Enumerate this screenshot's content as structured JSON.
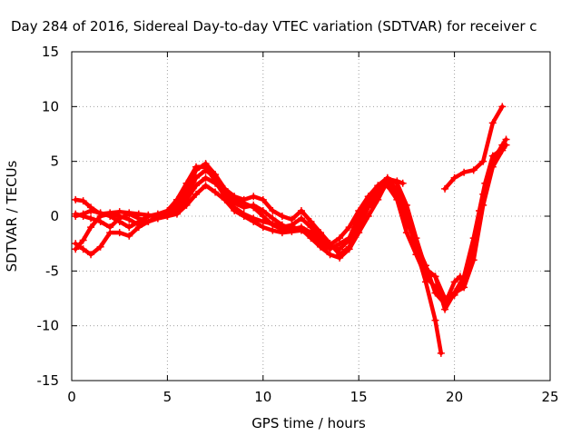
{
  "chart_data": {
    "type": "scatter",
    "title": "Day 284 of 2016, Sidereal Day-to-day VTEC variation (SDTVAR) for receiver c",
    "xlabel": "GPS time / hours",
    "ylabel": "SDTVAR / TECUs",
    "xlim": [
      0,
      25
    ],
    "ylim": [
      -15,
      15
    ],
    "xticks": [
      "0",
      "5",
      "10",
      "15",
      "20",
      "25"
    ],
    "yticks": [
      "-15",
      "-10",
      "-5",
      "0",
      "5",
      "10",
      "15"
    ],
    "grid": true,
    "legend": "none",
    "marker": "plus",
    "color": "#ff0000",
    "series": [
      {
        "points": [
          [
            0.2,
            1.5
          ],
          [
            0.6,
            1.4
          ],
          [
            1.0,
            0.8
          ],
          [
            1.5,
            0.2
          ],
          [
            2.0,
            0.3
          ],
          [
            2.5,
            0.4
          ],
          [
            3.0,
            0.3
          ],
          [
            3.5,
            0.2
          ],
          [
            4.0,
            0.1
          ],
          [
            4.5,
            0.0
          ],
          [
            5.0,
            0.2
          ],
          [
            5.5,
            0.8
          ],
          [
            6.0,
            2.5
          ],
          [
            6.5,
            4.2
          ],
          [
            7.0,
            4.8
          ],
          [
            7.5,
            3.8
          ],
          [
            8.0,
            2.5
          ],
          [
            8.5,
            1.8
          ],
          [
            9.0,
            1.5
          ],
          [
            9.5,
            1.8
          ],
          [
            10.0,
            1.5
          ],
          [
            10.5,
            0.5
          ],
          [
            11.0,
            0.0
          ],
          [
            11.5,
            -0.3
          ],
          [
            12.0,
            0.5
          ],
          [
            12.5,
            -0.5
          ],
          [
            13.0,
            -1.5
          ],
          [
            13.5,
            -2.5
          ],
          [
            14.0,
            -3.5
          ],
          [
            14.5,
            -2.8
          ],
          [
            15.0,
            -1.0
          ],
          [
            15.5,
            0.8
          ],
          [
            16.0,
            1.8
          ],
          [
            16.5,
            3.0
          ],
          [
            17.0,
            2.0
          ],
          [
            17.5,
            -0.5
          ],
          [
            18.0,
            -2.5
          ],
          [
            18.5,
            -4.5
          ],
          [
            19.0,
            -7.0
          ],
          [
            19.5,
            -8.0
          ],
          [
            20.0,
            -6.0
          ],
          [
            20.3,
            -5.5
          ]
        ]
      },
      {
        "points": [
          [
            0.2,
            0.2
          ],
          [
            0.6,
            0.0
          ],
          [
            1.0,
            -0.2
          ],
          [
            1.5,
            -0.5
          ],
          [
            2.0,
            -1.0
          ],
          [
            2.5,
            -0.2
          ],
          [
            3.0,
            0.2
          ],
          [
            3.5,
            -0.2
          ],
          [
            4.0,
            -0.5
          ],
          [
            4.5,
            0.0
          ],
          [
            5.0,
            0.3
          ],
          [
            5.5,
            1.0
          ],
          [
            6.0,
            2.0
          ],
          [
            6.5,
            3.5
          ],
          [
            7.0,
            4.2
          ],
          [
            7.5,
            3.5
          ],
          [
            8.0,
            2.0
          ],
          [
            8.5,
            1.2
          ],
          [
            9.0,
            0.8
          ],
          [
            9.5,
            1.0
          ],
          [
            10.0,
            0.5
          ],
          [
            10.5,
            -0.2
          ],
          [
            11.0,
            -0.8
          ],
          [
            11.5,
            -1.2
          ],
          [
            12.0,
            -1.0
          ],
          [
            12.5,
            -1.5
          ],
          [
            13.0,
            -2.2
          ],
          [
            13.5,
            -2.8
          ],
          [
            14.0,
            -3.0
          ],
          [
            14.5,
            -2.2
          ],
          [
            15.0,
            -0.5
          ],
          [
            15.5,
            1.2
          ],
          [
            16.0,
            2.2
          ],
          [
            16.5,
            3.4
          ],
          [
            17.0,
            3.2
          ],
          [
            17.3,
            3.0
          ]
        ]
      },
      {
        "points": [
          [
            0.2,
            -3.0
          ],
          [
            0.6,
            -2.2
          ],
          [
            1.0,
            -1.0
          ],
          [
            1.5,
            0.0
          ],
          [
            2.0,
            0.2
          ],
          [
            2.5,
            0.0
          ],
          [
            3.0,
            -0.3
          ],
          [
            3.5,
            -0.8
          ],
          [
            4.0,
            -0.5
          ],
          [
            4.5,
            -0.2
          ],
          [
            5.0,
            0.0
          ],
          [
            5.5,
            0.5
          ],
          [
            6.0,
            1.5
          ],
          [
            6.5,
            2.8
          ],
          [
            7.0,
            3.5
          ],
          [
            7.5,
            3.0
          ],
          [
            8.0,
            2.2
          ],
          [
            8.5,
            1.5
          ],
          [
            9.0,
            1.2
          ],
          [
            9.5,
            0.8
          ],
          [
            10.0,
            0.0
          ],
          [
            10.5,
            -0.8
          ],
          [
            11.0,
            -1.2
          ],
          [
            11.5,
            -1.0
          ],
          [
            12.0,
            -1.2
          ],
          [
            12.5,
            -2.0
          ],
          [
            13.0,
            -2.8
          ],
          [
            13.5,
            -3.5
          ],
          [
            14.0,
            -3.8
          ],
          [
            14.5,
            -3.0
          ],
          [
            15.0,
            -1.5
          ],
          [
            15.5,
            0.0
          ],
          [
            16.0,
            1.5
          ],
          [
            16.5,
            3.2
          ],
          [
            17.0,
            2.5
          ],
          [
            17.5,
            0.0
          ],
          [
            18.0,
            -3.0
          ],
          [
            18.5,
            -6.0
          ],
          [
            19.0,
            -9.5
          ],
          [
            19.3,
            -12.5
          ]
        ]
      },
      {
        "points": [
          [
            0.2,
            -2.5
          ],
          [
            0.6,
            -3.0
          ],
          [
            1.0,
            -3.5
          ],
          [
            1.5,
            -2.8
          ],
          [
            2.0,
            -1.5
          ],
          [
            2.5,
            -1.5
          ],
          [
            3.0,
            -1.8
          ],
          [
            3.5,
            -1.0
          ],
          [
            4.0,
            -0.5
          ],
          [
            4.5,
            -0.2
          ],
          [
            5.0,
            0.0
          ],
          [
            5.5,
            0.2
          ],
          [
            6.0,
            1.0
          ],
          [
            6.5,
            2.0
          ],
          [
            7.0,
            2.8
          ],
          [
            7.5,
            2.2
          ],
          [
            8.0,
            1.5
          ],
          [
            8.5,
            0.5
          ],
          [
            9.0,
            0.0
          ],
          [
            9.5,
            -0.5
          ],
          [
            10.0,
            -1.0
          ],
          [
            10.5,
            -1.3
          ],
          [
            11.0,
            -1.5
          ],
          [
            11.5,
            -1.4
          ],
          [
            12.0,
            -1.3
          ],
          [
            12.5,
            -1.8
          ],
          [
            13.0,
            -2.5
          ],
          [
            13.5,
            -3.0
          ],
          [
            14.0,
            -2.5
          ],
          [
            14.5,
            -2.0
          ],
          [
            15.0,
            0.0
          ],
          [
            15.5,
            1.5
          ],
          [
            16.0,
            2.5
          ],
          [
            16.5,
            2.8
          ],
          [
            17.0,
            1.5
          ],
          [
            17.5,
            -1.5
          ],
          [
            18.0,
            -3.5
          ],
          [
            18.5,
            -5.5
          ],
          [
            19.0,
            -6.5
          ],
          [
            19.5,
            -7.5
          ],
          [
            20.0,
            -7.0
          ],
          [
            20.5,
            -6.5
          ],
          [
            21.0,
            -4.0
          ],
          [
            21.5,
            1.0
          ],
          [
            22.0,
            4.5
          ],
          [
            22.5,
            6.0
          ],
          [
            22.7,
            6.5
          ]
        ]
      },
      {
        "points": [
          [
            0.2,
            0.0
          ],
          [
            0.6,
            0.2
          ],
          [
            1.0,
            0.5
          ],
          [
            1.5,
            0.3
          ],
          [
            2.0,
            0.0
          ],
          [
            2.5,
            -0.5
          ],
          [
            3.0,
            -1.0
          ],
          [
            3.5,
            -0.5
          ],
          [
            4.0,
            0.0
          ],
          [
            4.5,
            0.2
          ],
          [
            5.0,
            0.5
          ],
          [
            5.5,
            1.5
          ],
          [
            6.0,
            3.0
          ],
          [
            6.5,
            4.5
          ],
          [
            7.0,
            4.5
          ],
          [
            7.5,
            3.2
          ],
          [
            8.0,
            1.8
          ],
          [
            8.5,
            0.8
          ],
          [
            9.0,
            0.2
          ],
          [
            9.5,
            -0.2
          ],
          [
            10.0,
            -0.5
          ],
          [
            10.5,
            -0.7
          ],
          [
            11.0,
            -1.0
          ],
          [
            11.5,
            -0.8
          ],
          [
            12.0,
            -0.2
          ],
          [
            12.5,
            -1.0
          ],
          [
            13.0,
            -2.0
          ],
          [
            13.5,
            -2.6
          ],
          [
            14.0,
            -2.0
          ],
          [
            14.5,
            -1.0
          ],
          [
            15.0,
            0.5
          ],
          [
            15.5,
            1.8
          ],
          [
            16.0,
            2.8
          ],
          [
            16.5,
            3.5
          ],
          [
            17.0,
            3.0
          ],
          [
            17.5,
            1.0
          ],
          [
            18.0,
            -2.0
          ],
          [
            18.5,
            -4.8
          ],
          [
            19.0,
            -5.5
          ],
          [
            19.5,
            -7.5
          ],
          [
            20.0,
            -7.2
          ],
          [
            20.5,
            -6.0
          ],
          [
            21.0,
            -3.0
          ],
          [
            21.5,
            2.0
          ],
          [
            22.0,
            5.0
          ],
          [
            22.5,
            6.5
          ],
          [
            22.7,
            7.0
          ]
        ]
      },
      {
        "points": [
          [
            19.5,
            2.5
          ],
          [
            20.0,
            3.5
          ],
          [
            20.5,
            4.0
          ],
          [
            21.0,
            4.2
          ],
          [
            21.5,
            5.0
          ],
          [
            22.0,
            8.5
          ],
          [
            22.5,
            10.0
          ]
        ]
      },
      {
        "points": [
          [
            19.0,
            -5.5
          ],
          [
            19.5,
            -8.5
          ],
          [
            20.0,
            -7.0
          ],
          [
            20.5,
            -5.5
          ],
          [
            21.0,
            -2.0
          ],
          [
            21.3,
            0.5
          ],
          [
            21.6,
            3.0
          ],
          [
            22.0,
            5.5
          ],
          [
            22.4,
            6.0
          ]
        ]
      }
    ]
  }
}
